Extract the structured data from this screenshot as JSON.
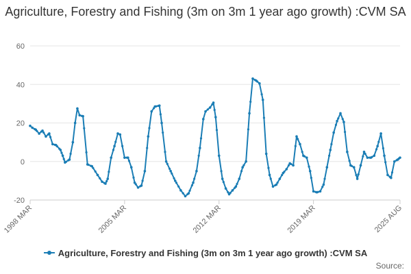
{
  "title": "Agriculture, Forestry and Fishing (3m on 3m 1 year ago growth) :CVM SA",
  "source": "Source:",
  "colors": {
    "series": "#1a7db5",
    "grid": "#e6e6e6",
    "text": "#666666"
  },
  "chart_data": {
    "type": "line",
    "title": "Agriculture, Forestry and Fishing (3m on 3m 1 year ago growth) :CVM SA",
    "xlabel": "",
    "ylabel": "",
    "ylim": [
      -20,
      60
    ],
    "yticks": [
      "60",
      "40",
      "20",
      "0",
      "-20"
    ],
    "xticks": [
      "1998 MAR",
      "2005 MAR",
      "2012 MAR",
      "2019 MAR",
      "2025 AUG"
    ],
    "x_range": [
      "1998 MAR",
      "2025 AUG"
    ],
    "grid": true,
    "legend": "bottom",
    "series": [
      {
        "name": "Agriculture, Forestry and Fishing (3m on 3m 1 year ago growth) :CVM SA",
        "points": [
          [
            "1998 MAR",
            18.5
          ],
          [
            "1998 MAY",
            17.5
          ],
          [
            "1998 AUG",
            16.5
          ],
          [
            "1998 NOV",
            14.5
          ],
          [
            "1999 FEB",
            16
          ],
          [
            "1999 MAY",
            13
          ],
          [
            "1999 AUG",
            14.5
          ],
          [
            "1999 NOV",
            9
          ],
          [
            "2000 FEB",
            8.5
          ],
          [
            "2000 JUN",
            6
          ],
          [
            "2000 AUG",
            3
          ],
          [
            "2000 OCT",
            -0.5
          ],
          [
            "2001 FEB",
            1
          ],
          [
            "2001 MAY",
            10
          ],
          [
            "2001 JUL",
            20
          ],
          [
            "2001 SEP",
            27.5
          ],
          [
            "2001 NOV",
            24
          ],
          [
            "2002 FEB",
            23.5
          ],
          [
            "2002 JUN",
            -1.5
          ],
          [
            "2002 OCT",
            -2.5
          ],
          [
            "2003 MAR",
            -7
          ],
          [
            "2003 JUL",
            -10.5
          ],
          [
            "2003 OCT",
            -11.5
          ],
          [
            "2003 DEC",
            -9
          ],
          [
            "2004 MAR",
            2
          ],
          [
            "2004 JUN",
            8
          ],
          [
            "2004 SEP",
            14.5
          ],
          [
            "2004 NOV",
            14
          ],
          [
            "2005 MAR",
            2
          ],
          [
            "2005 JUN",
            2
          ],
          [
            "2005 SEP",
            -3
          ],
          [
            "2005 DEC",
            -11
          ],
          [
            "2006 MAR",
            -13.5
          ],
          [
            "2006 JUN",
            -12.5
          ],
          [
            "2006 SEP",
            -5
          ],
          [
            "2006 DEC",
            13
          ],
          [
            "2007 MAR",
            26
          ],
          [
            "2007 JUN",
            28.5
          ],
          [
            "2007 OCT",
            29
          ],
          [
            "2007 DEC",
            20
          ],
          [
            "2008 APR",
            0
          ],
          [
            "2008 AUG",
            -5
          ],
          [
            "2008 DEC",
            -10
          ],
          [
            "2009 MAY",
            -15
          ],
          [
            "2009 SEP",
            -18
          ],
          [
            "2009 DEC",
            -16.5
          ],
          [
            "2010 APR",
            -11
          ],
          [
            "2010 JUL",
            -5
          ],
          [
            "2010 OCT",
            7
          ],
          [
            "2011 JAN",
            22
          ],
          [
            "2011 MAR",
            26
          ],
          [
            "2011 JUL",
            28
          ],
          [
            "2011 OCT",
            30.5
          ],
          [
            "2011 DEC",
            23
          ],
          [
            "2012 MAR",
            3
          ],
          [
            "2012 JUN",
            -9
          ],
          [
            "2012 SEP",
            -14
          ],
          [
            "2012 DEC",
            -17
          ],
          [
            "2013 MAR",
            -15
          ],
          [
            "2013 JUN",
            -13
          ],
          [
            "2013 SEP",
            -9
          ],
          [
            "2013 DEC",
            -3
          ],
          [
            "2014 MAR",
            0
          ],
          [
            "2014 JUN",
            25
          ],
          [
            "2014 SEP",
            43
          ],
          [
            "2014 DEC",
            42
          ],
          [
            "2015 MAR",
            40.5
          ],
          [
            "2015 JUN",
            32
          ],
          [
            "2015 SEP",
            4
          ],
          [
            "2015 DEC",
            -7
          ],
          [
            "2016 MAR",
            -13
          ],
          [
            "2016 JUN",
            -12
          ],
          [
            "2016 SEP",
            -9
          ],
          [
            "2016 DEC",
            -6
          ],
          [
            "2017 MAR",
            -4
          ],
          [
            "2017 JUN",
            -1
          ],
          [
            "2017 SEP",
            -2
          ],
          [
            "2017 DEC",
            13
          ],
          [
            "2018 MAR",
            9
          ],
          [
            "2018 JUN",
            3
          ],
          [
            "2018 SEP",
            2
          ],
          [
            "2018 DEC",
            -5
          ],
          [
            "2019 MAR",
            -15.5
          ],
          [
            "2019 JUN",
            -16
          ],
          [
            "2019 SEP",
            -15.5
          ],
          [
            "2019 DEC",
            -12
          ],
          [
            "2020 MAR",
            -3
          ],
          [
            "2020 JUN",
            6
          ],
          [
            "2020 SEP",
            15
          ],
          [
            "2020 DEC",
            21
          ],
          [
            "2021 MAR",
            25
          ],
          [
            "2021 JUN",
            20.5
          ],
          [
            "2021 SEP",
            5
          ],
          [
            "2021 DEC",
            -2
          ],
          [
            "2022 MAR",
            -3
          ],
          [
            "2022 JUN",
            -9
          ],
          [
            "2022 SEP",
            -2
          ],
          [
            "2022 DEC",
            5
          ],
          [
            "2023 MAR",
            2
          ],
          [
            "2023 JUN",
            2
          ],
          [
            "2023 SEP",
            3
          ],
          [
            "2023 DEC",
            8
          ],
          [
            "2024 MAR",
            14.5
          ],
          [
            "2024 JUN",
            3
          ],
          [
            "2024 SEP",
            -7
          ],
          [
            "2024 DEC",
            -8.5
          ],
          [
            "2025 MAR",
            0
          ],
          [
            "2025 JUN",
            1
          ],
          [
            "2025 AUG",
            2
          ]
        ]
      }
    ]
  }
}
